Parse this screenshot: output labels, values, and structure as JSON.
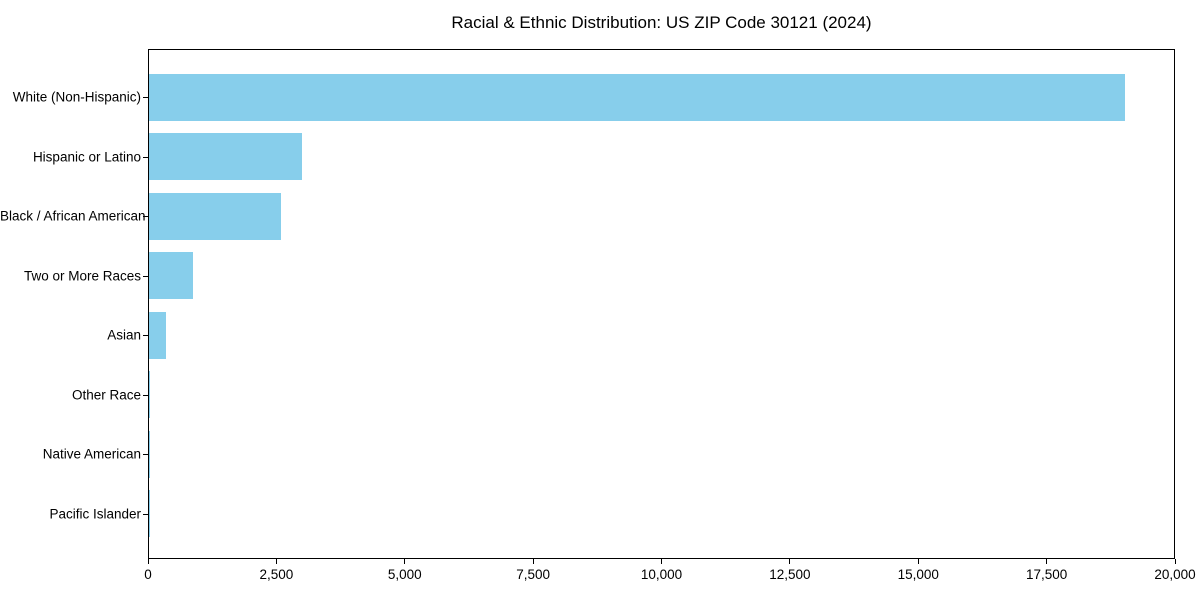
{
  "chart_data": {
    "type": "bar",
    "orientation": "horizontal",
    "title": "Racial & Ethnic Distribution: US ZIP Code 30121 (2024)",
    "categories": [
      "White (Non-Hispanic)",
      "Hispanic or Latino",
      "Black / African American",
      "Two or More Races",
      "Asian",
      "Other Race",
      "Native American",
      "Pacific Islander"
    ],
    "values": [
      19050,
      2990,
      2580,
      860,
      325,
      25,
      10,
      5
    ],
    "xlabel": "",
    "ylabel": "",
    "xlim": [
      0,
      20000
    ],
    "x_ticks": [
      0,
      2500,
      5000,
      7500,
      10000,
      12500,
      15000,
      17500,
      20000
    ],
    "x_tick_labels": [
      "0",
      "2,500",
      "5,000",
      "7,500",
      "10,000",
      "12,500",
      "15,000",
      "17,500",
      "20,000"
    ],
    "bar_color": "#87CEEB",
    "background_color": "#ffffff",
    "spine_color": "#000000",
    "grid": false,
    "legend": null,
    "categories_order": "top-to-bottom descending"
  }
}
